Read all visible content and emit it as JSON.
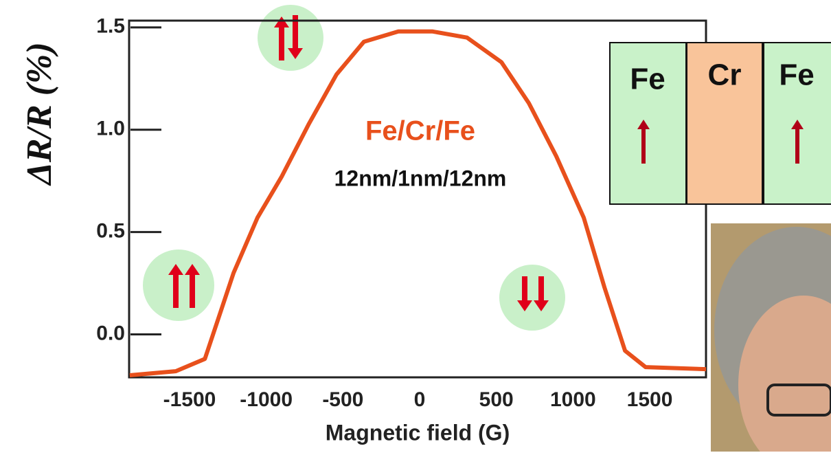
{
  "chart_data": {
    "type": "line",
    "x_label": "Magnetic field (G)",
    "y_label": "ΔR/R (%)",
    "annotations": [
      "Fe/Cr/Fe",
      "12nm/1nm/12nm"
    ],
    "x": [
      -1890,
      -1590,
      -1400,
      -1213,
      -1057,
      -900,
      -721,
      -542,
      -363,
      -139,
      85,
      309,
      533,
      712,
      891,
      1070,
      1205,
      1339,
      1473,
      1867
    ],
    "series": [
      {
        "name": "Fe/Cr/Fe",
        "color": "#e8501c",
        "values": [
          -0.2,
          -0.18,
          -0.12,
          0.3,
          0.57,
          0.77,
          1.03,
          1.27,
          1.43,
          1.48,
          1.48,
          1.45,
          1.33,
          1.13,
          0.87,
          0.57,
          0.23,
          -0.08,
          -0.16,
          -0.17
        ]
      }
    ],
    "xlim": [
      -1894,
      1867
    ],
    "ylim": [
      -0.21,
      1.533
    ],
    "xticks": [
      -1500,
      -1000,
      -500,
      0,
      500,
      1000,
      1500
    ],
    "yticks": [
      {
        "value": 0,
        "label": "0.0"
      },
      0.5,
      {
        "value": 1,
        "label": "1.0"
      },
      1.5
    ]
  },
  "layer_diagram": {
    "layers": [
      "Fe",
      "Cr",
      "Fe"
    ]
  }
}
